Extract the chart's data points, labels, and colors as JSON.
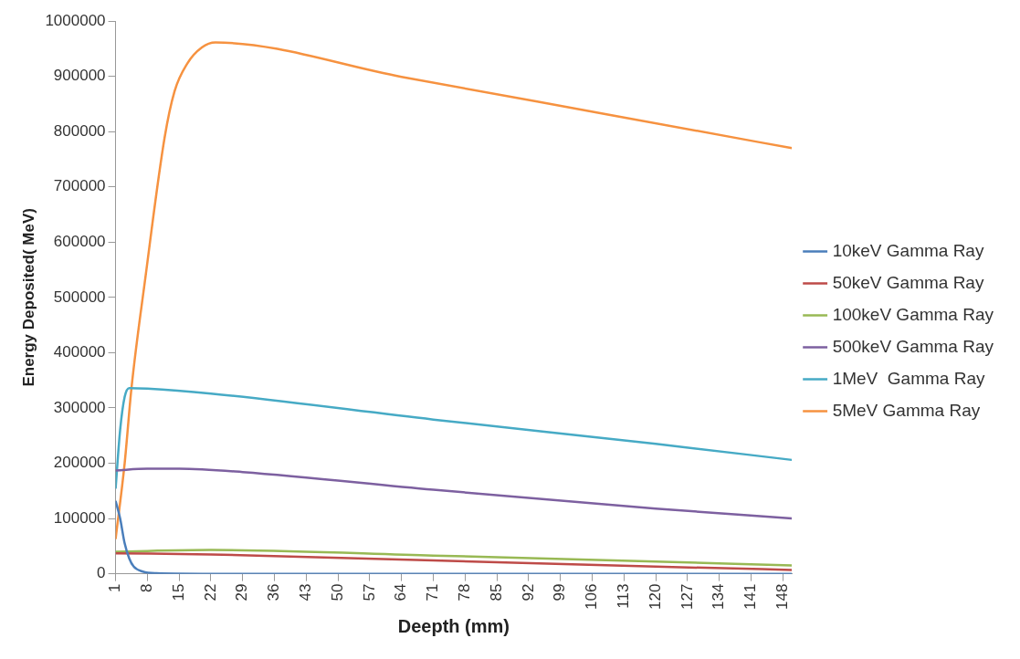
{
  "chart_data": {
    "type": "line",
    "xlabel": "Deepth (mm)",
    "ylabel": "Energy Deposited( MeV)",
    "xlim": [
      1,
      150
    ],
    "xticks": [
      1,
      8,
      15,
      22,
      29,
      36,
      43,
      50,
      57,
      64,
      71,
      78,
      85,
      92,
      99,
      106,
      113,
      120,
      127,
      134,
      141,
      148
    ],
    "ylim": [
      0,
      1000000
    ],
    "yticks": [
      0,
      100000,
      200000,
      300000,
      400000,
      500000,
      600000,
      700000,
      800000,
      900000,
      1000000
    ],
    "grid": false,
    "legend": "right",
    "marker": "none",
    "line_style": "solid",
    "series": [
      {
        "name": "10keV Gamma Ray",
        "color": "#4a7ebb",
        "x": [
          1,
          2,
          3,
          4,
          5,
          7,
          10,
          20,
          150
        ],
        "values": [
          132000,
          100000,
          55000,
          28000,
          13000,
          4000,
          1000,
          0,
          0
        ]
      },
      {
        "name": "50keV Gamma Ray",
        "color": "#be4b48",
        "x": [
          1,
          22,
          71,
          120,
          150
        ],
        "values": [
          37000,
          35000,
          24000,
          13000,
          7000
        ]
      },
      {
        "name": "100keV Gamma Ray",
        "color": "#98b954",
        "x": [
          1,
          22,
          71,
          120,
          150
        ],
        "values": [
          40000,
          43000,
          33000,
          22000,
          15000
        ]
      },
      {
        "name": "500keV Gamma Ray",
        "color": "#7d60a0",
        "x": [
          1,
          8,
          15,
          29,
          71,
          120,
          150
        ],
        "values": [
          187000,
          190000,
          190000,
          184000,
          152000,
          118000,
          100000
        ]
      },
      {
        "name": "1MeV  Gamma Ray",
        "color": "#46aac5",
        "x": [
          1,
          2,
          3,
          4,
          8,
          22,
          71,
          120,
          150
        ],
        "values": [
          154000,
          260000,
          320000,
          336000,
          335000,
          326000,
          279000,
          235000,
          206000
        ]
      },
      {
        "name": "5MeV Gamma Ray",
        "color": "#f69240",
        "x": [
          1,
          3,
          4.5,
          7.6,
          11.8,
          14,
          16.8,
          20,
          23,
          64,
          110,
          150
        ],
        "values": [
          63000,
          200000,
          336000,
          538000,
          789000,
          873000,
          923000,
          952000,
          961000,
          899000,
          830000,
          770000
        ]
      }
    ]
  }
}
